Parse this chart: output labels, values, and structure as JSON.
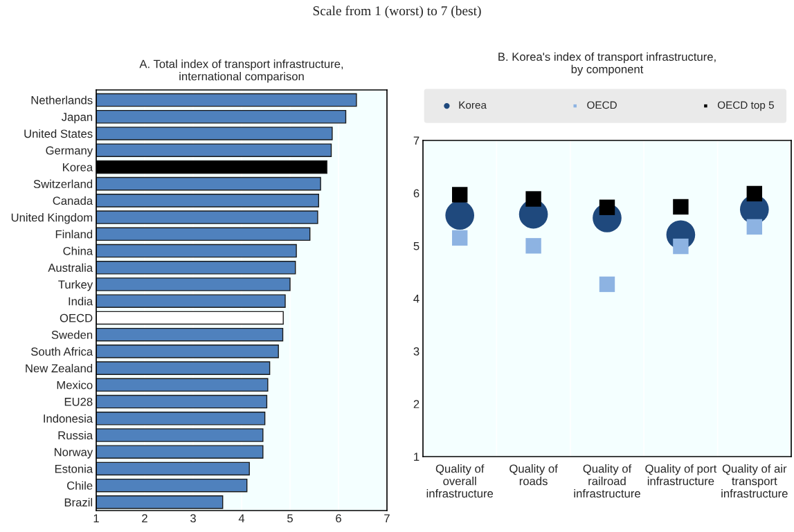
{
  "chart_data": [
    {
      "type": "bar",
      "orientation": "horizontal",
      "title": "A. Total index of transport infrastructure,\ninternational comparison",
      "annotations": [
        "Scale from 1 (worst) to 7 (best)"
      ],
      "categories": [
        "Netherlands",
        "Japan",
        "United States",
        "Germany",
        "Korea",
        "Switzerland",
        "Canada",
        "United Kingdom",
        "Finland",
        "China",
        "Australia",
        "Turkey",
        "India",
        "OECD",
        "Sweden",
        "South Africa",
        "New Zealand",
        "Mexico",
        "EU28",
        "Indonesia",
        "Russia",
        "Norway",
        "Estonia",
        "Chile",
        "Brazil"
      ],
      "values": [
        6.37,
        6.15,
        5.87,
        5.85,
        5.76,
        5.63,
        5.59,
        5.57,
        5.41,
        5.13,
        5.11,
        5.0,
        4.9,
        4.86,
        4.85,
        4.76,
        4.58,
        4.54,
        4.52,
        4.48,
        4.44,
        4.44,
        4.16,
        4.11,
        3.61
      ],
      "colors": [
        "#4f81bd",
        "#4f81bd",
        "#4f81bd",
        "#4f81bd",
        "#000000",
        "#4f81bd",
        "#4f81bd",
        "#4f81bd",
        "#4f81bd",
        "#4f81bd",
        "#4f81bd",
        "#4f81bd",
        "#4f81bd",
        "#ffffff",
        "#4f81bd",
        "#4f81bd",
        "#4f81bd",
        "#4f81bd",
        "#4f81bd",
        "#4f81bd",
        "#4f81bd",
        "#4f81bd",
        "#4f81bd",
        "#4f81bd",
        "#4f81bd"
      ],
      "xlim": [
        1,
        7
      ],
      "xticks": [
        1,
        2,
        3,
        4,
        5,
        6,
        7
      ],
      "grid": "x"
    },
    {
      "type": "scatter",
      "title": "B. Korea's index of transport infrastructure,\nby component",
      "categories": [
        "Quality of\noverall\ninfrastructure",
        "Quality of\nroads",
        "Quality of\nrailroad\ninfrastructure",
        "Quality of port\ninfrastructure",
        "Quality of air\ntransport\ninfrastructure"
      ],
      "series": [
        {
          "name": "Korea",
          "color": "#1f497d",
          "marker": "circle",
          "values": [
            5.58,
            5.6,
            5.53,
            5.21,
            5.69
          ]
        },
        {
          "name": "OECD",
          "color": "#8db3e2",
          "marker": "square",
          "values": [
            5.15,
            5.0,
            4.27,
            4.99,
            5.36
          ]
        },
        {
          "name": "OECD top 5",
          "color": "#000000",
          "marker": "square",
          "values": [
            5.97,
            5.89,
            5.73,
            5.74,
            5.99
          ]
        }
      ],
      "ylim": [
        1,
        7
      ],
      "yticks": [
        1,
        2,
        3,
        4,
        5,
        6,
        7
      ],
      "legend": "top"
    }
  ]
}
